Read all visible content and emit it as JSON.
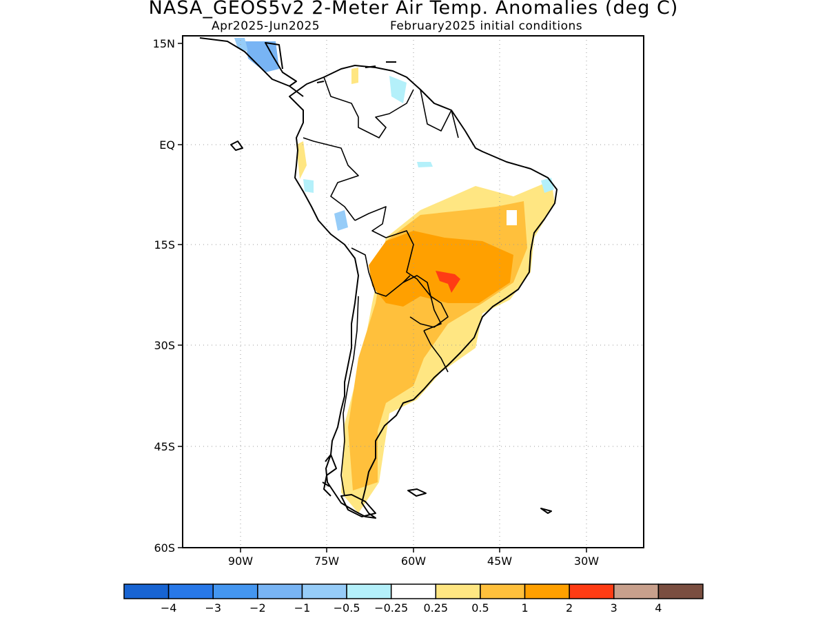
{
  "title": "NASA_GEOS5v2 2-Meter Air Temp. Anomalies (deg C)",
  "subtitle_left": "Apr2025-Jun2025",
  "subtitle_right": "February2025 initial conditions",
  "lat_labels": [
    "15N",
    "EQ",
    "15S",
    "30S",
    "45S",
    "60S"
  ],
  "lon_labels": [
    "90W",
    "75W",
    "60W",
    "45W",
    "30W"
  ],
  "colorbar": {
    "colors": [
      "#1864d2",
      "#2878e8",
      "#4496f0",
      "#78b4f4",
      "#96ccf8",
      "#b4f0fa",
      "#ffffff",
      "#ffe682",
      "#ffc03c",
      "#ffa000",
      "#ff3c14",
      "#c8a08c",
      "#7a4e40"
    ],
    "tick_labels": [
      "-4",
      "-3",
      "-2",
      "-1",
      "-0.5",
      "-0.25",
      "0.25",
      "0.5",
      "1",
      "2",
      "3",
      "4"
    ]
  }
}
